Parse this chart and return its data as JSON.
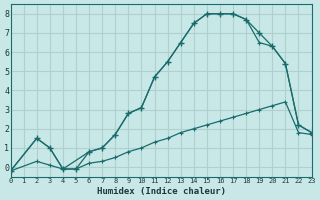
{
  "xlabel": "Humidex (Indice chaleur)",
  "ylabel": "",
  "bg_color": "#c8e8e8",
  "grid_color": "#b0d0d0",
  "line_color": "#1a6b6b",
  "xlim": [
    0,
    23
  ],
  "ylim": [
    -0.5,
    8.5
  ],
  "xticks": [
    0,
    1,
    2,
    3,
    4,
    5,
    6,
    7,
    8,
    9,
    10,
    11,
    12,
    13,
    14,
    15,
    16,
    17,
    18,
    19,
    20,
    21,
    22,
    23
  ],
  "yticks": [
    0,
    1,
    2,
    3,
    4,
    5,
    6,
    7,
    8
  ],
  "line1_x": [
    0,
    2,
    3,
    4,
    5,
    6,
    7,
    8,
    9,
    10,
    11,
    12,
    13,
    14,
    15,
    16,
    17,
    18,
    19,
    20,
    21,
    22,
    23
  ],
  "line1_y": [
    -0.2,
    1.5,
    1.0,
    -0.1,
    -0.1,
    0.8,
    1.0,
    1.7,
    2.8,
    3.1,
    4.7,
    5.5,
    6.5,
    7.5,
    8.0,
    8.0,
    8.0,
    7.7,
    7.0,
    6.3,
    5.4,
    2.2,
    1.8
  ],
  "line2_x": [
    0,
    2,
    3,
    4,
    6,
    7,
    8,
    9,
    10,
    11,
    12,
    13,
    14,
    15,
    16,
    17,
    18,
    19,
    20,
    21,
    22,
    23
  ],
  "line2_y": [
    -0.2,
    1.5,
    1.0,
    -0.1,
    0.8,
    1.0,
    1.7,
    2.8,
    3.1,
    4.7,
    5.5,
    6.5,
    7.5,
    8.0,
    8.0,
    8.0,
    7.7,
    6.5,
    6.3,
    5.4,
    2.2,
    1.8
  ],
  "line3_x": [
    0,
    2,
    3,
    4,
    5,
    6,
    7,
    8,
    9,
    10,
    11,
    12,
    13,
    14,
    15,
    16,
    17,
    18,
    19,
    20,
    21,
    22,
    23
  ],
  "line3_y": [
    -0.2,
    0.3,
    0.1,
    -0.1,
    -0.1,
    0.2,
    0.3,
    0.5,
    0.8,
    1.0,
    1.3,
    1.5,
    1.8,
    2.0,
    2.2,
    2.4,
    2.6,
    2.8,
    3.0,
    3.2,
    3.4,
    1.8,
    1.7
  ]
}
